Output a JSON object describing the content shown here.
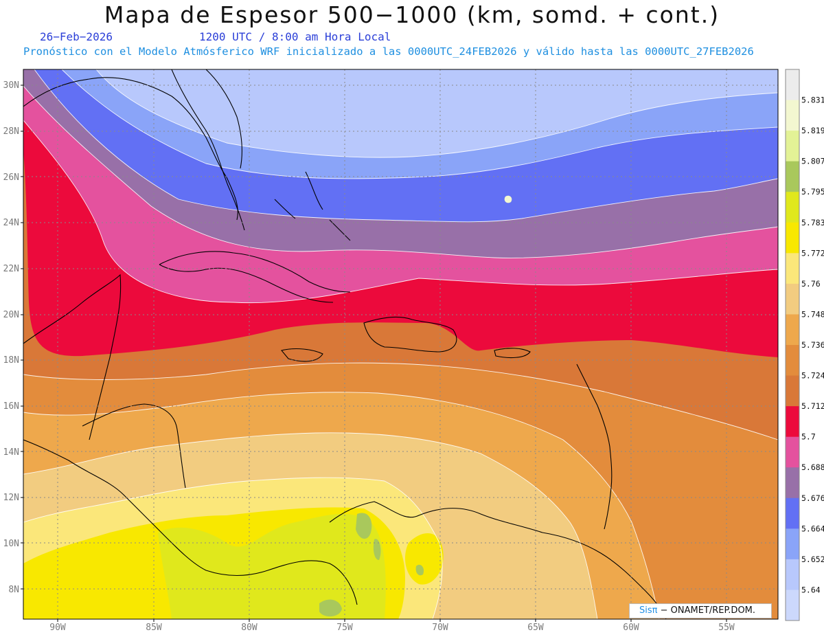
{
  "title": "Mapa de Espesor 500−1000 (km, somd. + cont.)",
  "date": "26−Feb−2026",
  "time": "1200 UTC / 8:00 am Hora Local",
  "forecast_line": "Pronóstico con el Modelo Atmósferico WRF inicializado a las 0000UTC_24FEB2026 y válido hasta las  0000UTC_27FEB2026",
  "credit": {
    "logo": "Sisπ",
    "text": "− ONAMET/REP.DOM."
  },
  "axes": {
    "lat_labels": [
      "30N",
      "28N",
      "26N",
      "24N",
      "22N",
      "20N",
      "18N",
      "16N",
      "14N",
      "12N",
      "10N",
      "8N"
    ],
    "lon_labels": [
      "90W",
      "85W",
      "80W",
      "75W",
      "70W",
      "65W",
      "60W",
      "55W"
    ]
  },
  "colorbar": {
    "levels": [
      "5.831",
      "5.819",
      "5.807",
      "5.795",
      "5.783",
      "5.772",
      "5.76",
      "5.748",
      "5.736",
      "5.724",
      "5.712",
      "5.7",
      "5.688",
      "5.676",
      "5.664",
      "5.652",
      "5.64"
    ],
    "colors": [
      "#ececec",
      "#f3f7d0",
      "#e3f296",
      "#a9c85c",
      "#e0e81c",
      "#f8e800",
      "#fbe77a",
      "#f2cc80",
      "#eea84c",
      "#e38c3c",
      "#d97838",
      "#ec0a3c",
      "#e4529e",
      "#9870a8",
      "#6270f4",
      "#8aa4f8",
      "#b8c8fc",
      "#ccd8fc"
    ]
  },
  "land_labels": []
}
